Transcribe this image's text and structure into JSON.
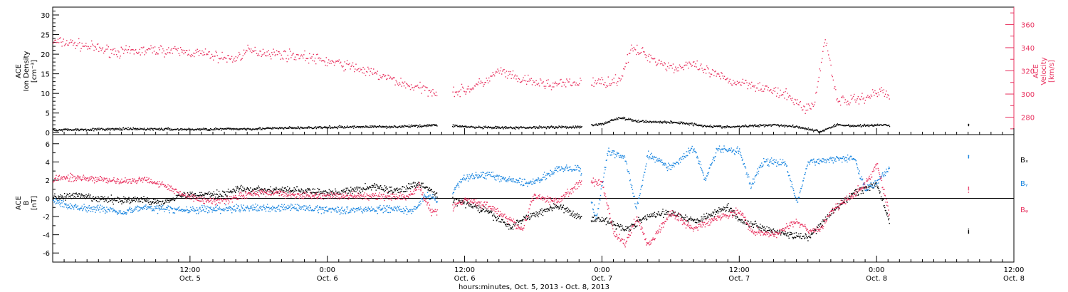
{
  "xlabel": "hours:minutes, Oct.  5, 2013 - Oct.  8, 2013",
  "colors": {
    "red": "#e8305e",
    "blue": "#1a86e0",
    "black": "#000000"
  },
  "chart_data": [
    {
      "type": "scatter",
      "panel": "top",
      "x_range_hours": [
        0,
        84
      ],
      "x_ticks": [
        {
          "h": 12,
          "time": "12:00",
          "date": "Oct. 5"
        },
        {
          "h": 24,
          "time": "0:00",
          "date": "Oct. 6"
        },
        {
          "h": 36,
          "time": "12:00",
          "date": "Oct. 6"
        },
        {
          "h": 48,
          "time": "0:00",
          "date": "Oct. 7"
        },
        {
          "h": 60,
          "time": "12:00",
          "date": "Oct. 7"
        },
        {
          "h": 72,
          "time": "0:00",
          "date": "Oct. 8"
        },
        {
          "h": 84,
          "time": "12:00",
          "date": "Oct. 8"
        }
      ],
      "left_axis": {
        "label_lines": [
          "ACE",
          "Ion Density",
          "[cm⁻³]"
        ],
        "ylim": [
          -0.5,
          32
        ],
        "ticks": [
          0,
          5,
          10,
          15,
          20,
          25,
          30
        ]
      },
      "right_axis": {
        "label_lines": [
          "ACE",
          "Velocity",
          "[km/s]"
        ],
        "ylim": [
          265,
          375
        ],
        "ticks": [
          280,
          300,
          320,
          340,
          360
        ]
      },
      "series": [
        {
          "color": "red",
          "axis": "right",
          "points": [
            [
              0,
              345
            ],
            [
              1.5,
              344
            ],
            [
              3,
              341
            ],
            [
              4.5,
              338
            ],
            [
              6,
              336
            ],
            [
              7.5,
              337
            ],
            [
              9,
              338
            ],
            [
              10.5,
              337
            ],
            [
              12,
              336
            ],
            [
              13.5,
              334
            ],
            [
              15,
              331
            ],
            [
              15.8,
              330
            ],
            [
              17,
              337
            ],
            [
              18.5,
              336
            ],
            [
              20,
              334
            ],
            [
              21.5,
              333
            ],
            [
              23,
              330
            ],
            [
              24.5,
              327
            ],
            [
              26,
              324
            ],
            [
              27.5,
              319
            ],
            [
              28.5,
              316
            ],
            [
              29.5,
              313
            ],
            [
              30.5,
              309
            ],
            [
              31.5,
              306
            ],
            [
              32.5,
              304
            ],
            [
              33.5,
              302
            ],
            [
              34.5,
              302
            ],
            [
              35.5,
              302
            ],
            [
              36.5,
              305
            ],
            [
              38,
              312
            ],
            [
              39,
              320
            ],
            [
              40.5,
              313
            ],
            [
              42,
              310
            ],
            [
              43.5,
              308
            ],
            [
              45,
              309
            ],
            [
              46.5,
              310
            ],
            [
              48,
              310
            ],
            [
              49.5,
              312
            ],
            [
              50.5,
              338
            ],
            [
              51.5,
              336
            ],
            [
              52.5,
              330
            ],
            [
              53.5,
              325
            ],
            [
              54.5,
              322
            ],
            [
              55.5,
              326
            ],
            [
              56.5,
              322
            ],
            [
              57.5,
              318
            ],
            [
              58.5,
              314
            ],
            [
              59.5,
              310
            ],
            [
              60.5,
              310
            ],
            [
              61.5,
              307
            ],
            [
              62.5,
              304
            ],
            [
              63.5,
              300
            ],
            [
              64.5,
              297
            ],
            [
              65.5,
              288
            ],
            [
              66.5,
              290
            ],
            [
              67.5,
              349
            ],
            [
              68.5,
              295
            ],
            [
              69.5,
              294
            ],
            [
              70.5,
              296
            ],
            [
              71.5,
              299
            ],
            [
              72.5,
              303
            ],
            [
              73.1,
              296
            ]
          ]
        },
        {
          "color": "black",
          "axis": "left",
          "points": [
            [
              0,
              0.7
            ],
            [
              3,
              0.8
            ],
            [
              6,
              0.9
            ],
            [
              9,
              0.9
            ],
            [
              12,
              0.8
            ],
            [
              15,
              0.9
            ],
            [
              18,
              1.0
            ],
            [
              21,
              1.2
            ],
            [
              24,
              1.3
            ],
            [
              27,
              1.5
            ],
            [
              30,
              1.5
            ],
            [
              32,
              1.7
            ],
            [
              34,
              2.0
            ],
            [
              37,
              1.3
            ],
            [
              40,
              1.2
            ],
            [
              43,
              1.4
            ],
            [
              46,
              1.4
            ],
            [
              48,
              2.2
            ],
            [
              49.5,
              3.8
            ],
            [
              51,
              2.9
            ],
            [
              53,
              2.7
            ],
            [
              55,
              2.5
            ],
            [
              57,
              1.7
            ],
            [
              59,
              1.4
            ],
            [
              61,
              1.7
            ],
            [
              63,
              2.0
            ],
            [
              65,
              1.5
            ],
            [
              66,
              0.9
            ],
            [
              67,
              0.2
            ],
            [
              68.5,
              2.0
            ],
            [
              70,
              1.7
            ],
            [
              72,
              1.9
            ],
            [
              73.1,
              1.9
            ],
            [
              80,
              2.0
            ]
          ]
        }
      ]
    },
    {
      "type": "scatter",
      "panel": "bottom",
      "left_axis": {
        "label_lines": [
          "ACE",
          "B",
          "[nT]"
        ],
        "ylim": [
          -7,
          7
        ],
        "ticks": [
          -6,
          -4,
          -2,
          0,
          2,
          4,
          6
        ]
      },
      "legend_position": "right",
      "series": [
        {
          "name": "Bₓ",
          "color": "black",
          "points": [
            [
              0,
              0.1
            ],
            [
              2,
              0.3
            ],
            [
              4,
              -0.1
            ],
            [
              6,
              -0.2
            ],
            [
              8,
              -0.2
            ],
            [
              9.5,
              -0.5
            ],
            [
              11,
              0.3
            ],
            [
              13,
              0.4
            ],
            [
              15,
              0.5
            ],
            [
              16,
              1.0
            ],
            [
              18,
              0.9
            ],
            [
              20,
              0.9
            ],
            [
              22,
              0.8
            ],
            [
              24,
              0.6
            ],
            [
              26,
              0.8
            ],
            [
              28,
              1.3
            ],
            [
              30,
              0.8
            ],
            [
              32,
              1.6
            ],
            [
              34,
              0.0
            ],
            [
              36,
              -0.5
            ],
            [
              38,
              -1.5
            ],
            [
              40,
              -3.2
            ],
            [
              41,
              -2.3
            ],
            [
              44,
              -0.8
            ],
            [
              46,
              -2.1
            ],
            [
              48,
              -2.3
            ],
            [
              50,
              -3.4
            ],
            [
              52,
              -2.0
            ],
            [
              54,
              -1.5
            ],
            [
              56,
              -2.5
            ],
            [
              58,
              -1.5
            ],
            [
              59,
              -0.9
            ],
            [
              60,
              -2.4
            ],
            [
              62,
              -3.2
            ],
            [
              64,
              -3.9
            ],
            [
              66,
              -4.4
            ],
            [
              68,
              -1.6
            ],
            [
              70,
              0.6
            ],
            [
              72,
              1.5
            ],
            [
              73.1,
              -2.6
            ],
            [
              80,
              -3.6
            ]
          ]
        },
        {
          "name": "Bᵧ",
          "color": "blue",
          "points": [
            [
              0,
              -0.3
            ],
            [
              2,
              -1.0
            ],
            [
              4,
              -1.1
            ],
            [
              6,
              -1.5
            ],
            [
              8,
              -1.0
            ],
            [
              10,
              -1.2
            ],
            [
              12,
              -1.3
            ],
            [
              14,
              -1.2
            ],
            [
              16,
              -1.1
            ],
            [
              18,
              -1.1
            ],
            [
              20,
              -1.0
            ],
            [
              22,
              -1.1
            ],
            [
              24,
              -1.2
            ],
            [
              26,
              -1.3
            ],
            [
              28,
              -1.2
            ],
            [
              30,
              -1.2
            ],
            [
              31.5,
              -1.4
            ],
            [
              32.5,
              0.3
            ],
            [
              34,
              -0.5
            ],
            [
              36,
              2.3
            ],
            [
              38,
              2.6
            ],
            [
              40,
              1.9
            ],
            [
              42,
              1.7
            ],
            [
              44,
              3.2
            ],
            [
              46,
              3.2
            ],
            [
              47.5,
              -2.0
            ],
            [
              48.5,
              5.2
            ],
            [
              50,
              4.4
            ],
            [
              51,
              -1.2
            ],
            [
              52,
              4.8
            ],
            [
              54,
              3.3
            ],
            [
              56,
              5.6
            ],
            [
              57,
              2.0
            ],
            [
              58,
              5.3
            ],
            [
              60,
              5.2
            ],
            [
              61,
              1.3
            ],
            [
              62,
              4.0
            ],
            [
              64,
              3.9
            ],
            [
              65,
              -0.5
            ],
            [
              66,
              3.9
            ],
            [
              68,
              4.3
            ],
            [
              70,
              4.5
            ],
            [
              71,
              1.0
            ],
            [
              72,
              1.8
            ],
            [
              73.1,
              3.4
            ],
            [
              80,
              4.7
            ]
          ]
        },
        {
          "name": "Bᵩ",
          "color": "red",
          "points": [
            [
              0,
              2.2
            ],
            [
              2,
              2.2
            ],
            [
              4,
              2.1
            ],
            [
              6,
              1.8
            ],
            [
              8,
              2.1
            ],
            [
              9.5,
              1.6
            ],
            [
              11,
              0.6
            ],
            [
              13,
              -0.2
            ],
            [
              15,
              -0.3
            ],
            [
              17,
              0.5
            ],
            [
              19,
              0.6
            ],
            [
              21,
              0.4
            ],
            [
              23,
              0.2
            ],
            [
              25,
              0.3
            ],
            [
              27,
              0.2
            ],
            [
              29,
              0.2
            ],
            [
              31,
              0.2
            ],
            [
              32,
              1.3
            ],
            [
              33,
              -1.4
            ],
            [
              34,
              -1.9
            ],
            [
              36,
              -0.1
            ],
            [
              38,
              -0.8
            ],
            [
              40,
              -2.4
            ],
            [
              41,
              -3.6
            ],
            [
              42,
              0.3
            ],
            [
              44,
              -0.4
            ],
            [
              46,
              1.6
            ],
            [
              48,
              1.8
            ],
            [
              49,
              -3.8
            ],
            [
              50,
              -5.0
            ],
            [
              51,
              -2.0
            ],
            [
              52,
              -5.2
            ],
            [
              54,
              -1.5
            ],
            [
              56,
              -3.4
            ],
            [
              58,
              -2.1
            ],
            [
              60,
              -1.4
            ],
            [
              61,
              -3.6
            ],
            [
              63,
              -4.0
            ],
            [
              65,
              -2.5
            ],
            [
              66,
              -3.6
            ],
            [
              67,
              -3.5
            ],
            [
              68,
              -1.5
            ],
            [
              70,
              0.5
            ],
            [
              71,
              1.5
            ],
            [
              72,
              3.8
            ],
            [
              73.1,
              -1.8
            ],
            [
              80,
              0.8
            ]
          ]
        }
      ]
    }
  ]
}
